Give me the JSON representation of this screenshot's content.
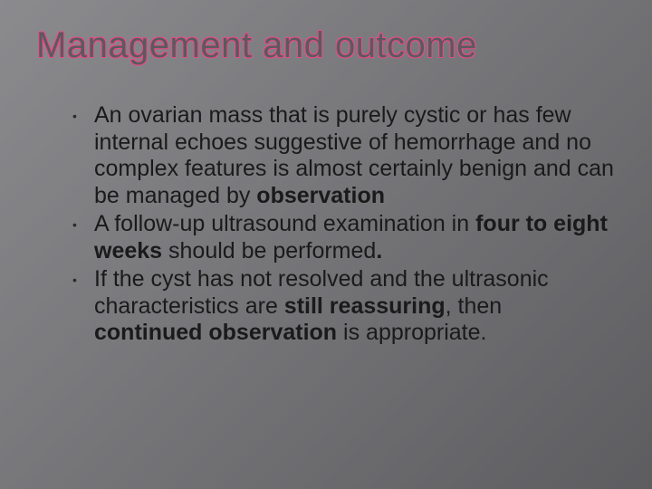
{
  "slide": {
    "title": "Management and outcome",
    "title_color_fill": "#5a5a5d",
    "title_color_outline": "#e94b8a",
    "title_fontsize": 40,
    "background_gradient": [
      "#8b8b8e",
      "#79797c",
      "#6b6b6e",
      "#5d5d60"
    ],
    "bullets": [
      {
        "pre": "An ovarian mass that is purely cystic or has few internal echoes suggestive of hemorrhage and no complex features is almost certainly benign and can be managed by ",
        "bold1": "observation",
        "mid": "",
        "bold2": "",
        "post": ""
      },
      {
        "pre": " A follow-up ultrasound examination in ",
        "bold1": "four to eight weeks",
        "mid": " should be performed",
        "bold2": ".",
        "post": ""
      },
      {
        "pre": "If the cyst has not resolved and the ultrasonic characteristics are ",
        "bold1": "still reassuring",
        "mid": ", then ",
        "bold2": "continued observation",
        "post": " is appropriate."
      }
    ],
    "body_fontsize": 25,
    "body_color": "#1a1a1a",
    "bullet_marker_color": "#2a2a2a"
  }
}
